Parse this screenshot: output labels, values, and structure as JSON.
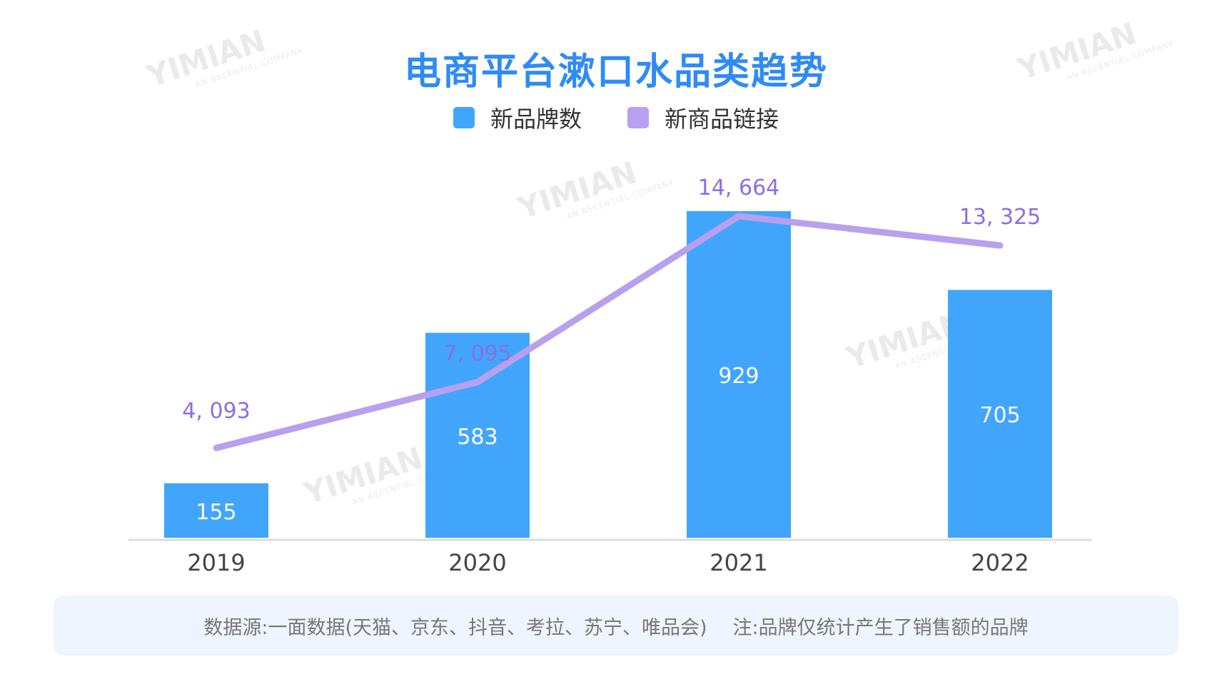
{
  "title": "电商平台漱口水品类趋势",
  "watermark": {
    "text": "YIMIAN",
    "subtext": "AN ASCENTIAL COMPANY"
  },
  "footer": {
    "source": "数据源:一面数据(天猫、京东、抖音、考拉、苏宁、唯品会)",
    "note": "注:品牌仅统计产生了销售额的品牌"
  },
  "colors": {
    "bar": "#42a5fc",
    "line": "#b7a1ef",
    "line_label": "#8b6fe0",
    "title": "#2f8bf5",
    "axis": "#dddddd"
  },
  "chart_data": {
    "type": "bar",
    "title": "电商平台漱口水品类趋势",
    "categories": [
      "2019",
      "2020",
      "2021",
      "2022"
    ],
    "legend_position": "top-center",
    "grid": false,
    "series": [
      {
        "name": "新品牌数",
        "type": "bar",
        "axis": "left",
        "values": [
          155,
          583,
          929,
          705
        ],
        "labels": [
          "155",
          "583",
          "929",
          "705"
        ]
      },
      {
        "name": "新商品链接",
        "type": "line",
        "axis": "right",
        "values": [
          4093,
          7095,
          14664,
          13325
        ],
        "labels": [
          "4, 093",
          "7, 095",
          "14, 664",
          "13, 325"
        ]
      }
    ]
  }
}
